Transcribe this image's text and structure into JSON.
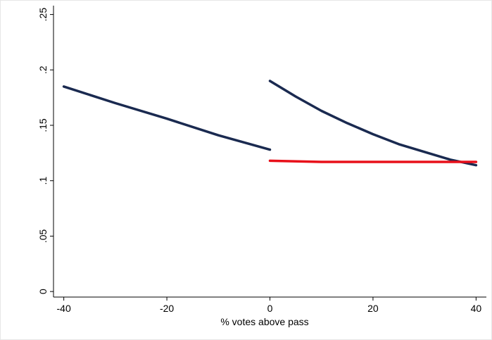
{
  "chart_data": {
    "type": "line",
    "title": "",
    "xlabel": "% votes above pass",
    "ylabel": "",
    "xlim": [
      -42,
      42
    ],
    "ylim": [
      -0.005,
      0.258
    ],
    "grid": false,
    "legend": "none",
    "x_ticks": [
      -40,
      -20,
      0,
      20,
      40
    ],
    "x_tick_labels": [
      "-40",
      "-20",
      "0",
      "20",
      "40"
    ],
    "y_ticks": [
      0,
      0.05,
      0.1,
      0.15,
      0.2,
      0.25
    ],
    "y_tick_labels": [
      "0",
      ".05",
      ".1",
      ".15",
      ".2",
      ".25"
    ],
    "series": [
      {
        "color": "#1a2a50",
        "stroke": 3.5,
        "x": [
          -40,
          -30,
          -20,
          -10,
          0
        ],
        "y": [
          0.185,
          0.17,
          0.156,
          0.141,
          0.128
        ]
      },
      {
        "color": "#1a2a50",
        "stroke": 3.5,
        "x": [
          0,
          5,
          10,
          15,
          20,
          25,
          30,
          35,
          40
        ],
        "y": [
          0.19,
          0.176,
          0.163,
          0.152,
          0.142,
          0.133,
          0.126,
          0.119,
          0.114
        ]
      },
      {
        "color": "#e8101a",
        "stroke": 3.5,
        "x": [
          0,
          10,
          20,
          30,
          40
        ],
        "y": [
          0.118,
          0.117,
          0.117,
          0.117,
          0.117
        ]
      }
    ]
  }
}
